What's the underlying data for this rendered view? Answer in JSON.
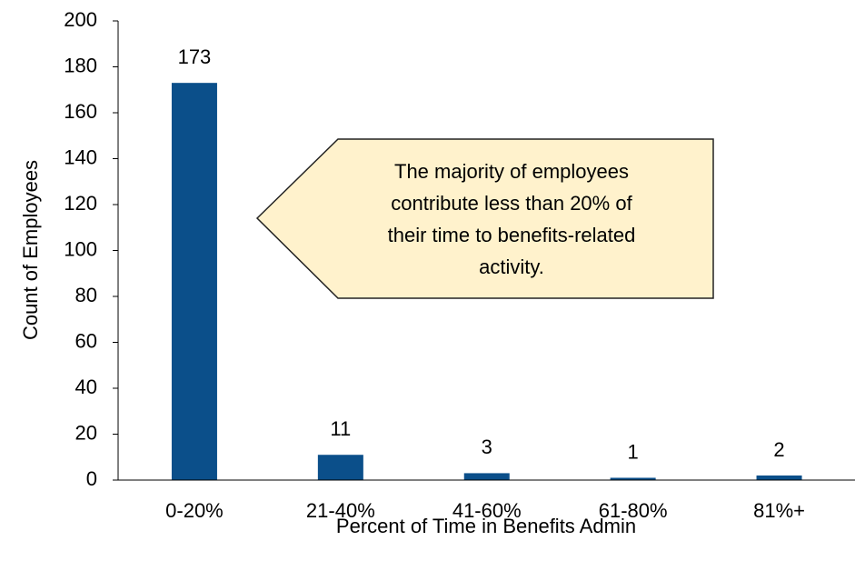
{
  "chart_data": {
    "type": "bar",
    "categories": [
      "0-20%",
      "21-40%",
      "41-60%",
      "61-80%",
      "81%+"
    ],
    "values": [
      173,
      11,
      3,
      1,
      2
    ],
    "color": "#0b4f8a",
    "xlabel": "Percent of Time in Benefits Admin",
    "ylabel": "Count of Employees",
    "ylim": [
      0,
      200
    ],
    "yticks": [
      0,
      20,
      40,
      60,
      80,
      100,
      120,
      140,
      160,
      180,
      200
    ],
    "grid": false,
    "annotation": [
      "The majority of employees",
      "contribute less than 20% of",
      "their time to benefits-related",
      "activity."
    ]
  }
}
